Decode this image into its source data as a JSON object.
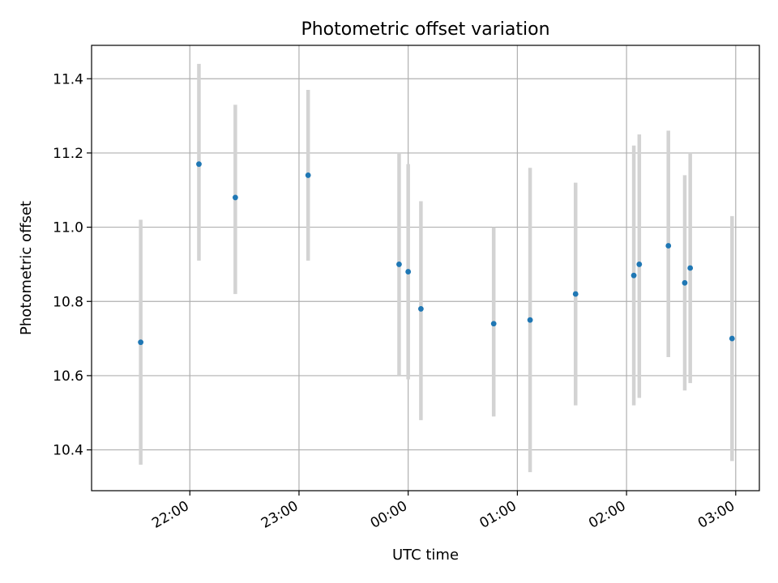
{
  "chart_data": {
    "type": "scatter",
    "title": "Photometric offset variation",
    "xlabel": "UTC time",
    "ylabel": "Photometric offset",
    "x_axis_type": "time",
    "xlim": [
      "21:06",
      "03:13"
    ],
    "ylim": [
      10.29,
      11.49
    ],
    "x_tick_labels": [
      "22:00",
      "23:00",
      "00:00",
      "01:00",
      "02:00",
      "03:00"
    ],
    "y_ticks": [
      10.4,
      10.6,
      10.8,
      11.0,
      11.2,
      11.4
    ],
    "y_tick_labels": [
      "10.4",
      "10.6",
      "10.8",
      "11.0",
      "11.2",
      "11.4"
    ],
    "grid": true,
    "marker_color": "#1f77b4",
    "errorbar_color": "#d3d3d3",
    "points": [
      {
        "x": "21:33",
        "y": 10.69,
        "ylow": 10.36,
        "yhigh": 11.02
      },
      {
        "x": "22:05",
        "y": 11.17,
        "ylow": 10.91,
        "yhigh": 11.44
      },
      {
        "x": "22:25",
        "y": 11.08,
        "ylow": 10.82,
        "yhigh": 11.33
      },
      {
        "x": "23:05",
        "y": 11.14,
        "ylow": 10.91,
        "yhigh": 11.37
      },
      {
        "x": "23:55",
        "y": 10.9,
        "ylow": 10.6,
        "yhigh": 11.2
      },
      {
        "x": "00:00",
        "y": 10.88,
        "ylow": 10.59,
        "yhigh": 11.17
      },
      {
        "x": "00:07",
        "y": 10.78,
        "ylow": 10.48,
        "yhigh": 11.07
      },
      {
        "x": "00:47",
        "y": 10.74,
        "ylow": 10.49,
        "yhigh": 11.0
      },
      {
        "x": "01:07",
        "y": 10.75,
        "ylow": 10.34,
        "yhigh": 11.16
      },
      {
        "x": "01:32",
        "y": 10.82,
        "ylow": 10.52,
        "yhigh": 11.12
      },
      {
        "x": "02:04",
        "y": 10.87,
        "ylow": 10.52,
        "yhigh": 11.22
      },
      {
        "x": "02:07",
        "y": 10.9,
        "ylow": 10.54,
        "yhigh": 11.25
      },
      {
        "x": "02:23",
        "y": 10.95,
        "ylow": 10.65,
        "yhigh": 11.26
      },
      {
        "x": "02:32",
        "y": 10.85,
        "ylow": 10.56,
        "yhigh": 11.14
      },
      {
        "x": "02:35",
        "y": 10.89,
        "ylow": 10.58,
        "yhigh": 11.2
      },
      {
        "x": "02:58",
        "y": 10.7,
        "ylow": 10.37,
        "yhigh": 11.03
      }
    ]
  }
}
